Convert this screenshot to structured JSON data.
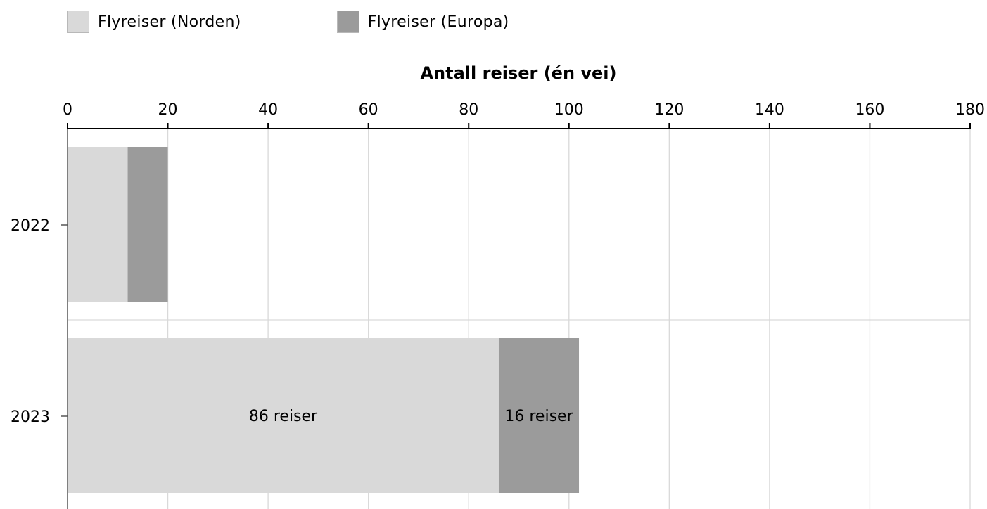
{
  "chart_data": {
    "type": "bar",
    "orientation": "horizontal",
    "stacked": true,
    "categories": [
      "2022",
      "2023"
    ],
    "series": [
      {
        "name": "Flyreiser (Norden)",
        "color": "#d9d9d9",
        "values": [
          12,
          86
        ],
        "labels": [
          "",
          "86 reiser"
        ]
      },
      {
        "name": "Flyreiser (Europa)",
        "color": "#9b9b9b",
        "values": [
          8,
          16
        ],
        "labels": [
          "",
          "16 reiser"
        ]
      }
    ],
    "xlabel": "Antall reiser (én vei)",
    "xlim": [
      0,
      180
    ],
    "xticks": [
      0,
      20,
      40,
      60,
      80,
      100,
      120,
      140,
      160,
      180
    ],
    "grid": true,
    "axis_position": "top",
    "legend_position": "top-left"
  }
}
